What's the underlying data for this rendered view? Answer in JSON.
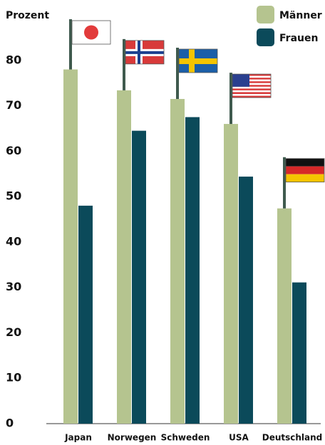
{
  "chart_data": {
    "type": "bar",
    "y_label": "Prozent",
    "categories": [
      "Japan",
      "Norwegen",
      "Schweden",
      "USA",
      "Deutschland"
    ],
    "series": [
      {
        "name": "Männer",
        "color": "#b5c48f",
        "values": [
          78,
          73.4,
          71.5,
          66,
          47.4
        ]
      },
      {
        "name": "Frauen",
        "color": "#0b4a5a",
        "values": [
          48,
          64.5,
          67.5,
          54.4,
          31.1
        ]
      }
    ],
    "ylim": [
      0,
      90
    ],
    "yticks": [
      0,
      10,
      20,
      30,
      40,
      50,
      60,
      70,
      80
    ],
    "grid": false,
    "legend": "top-right"
  }
}
